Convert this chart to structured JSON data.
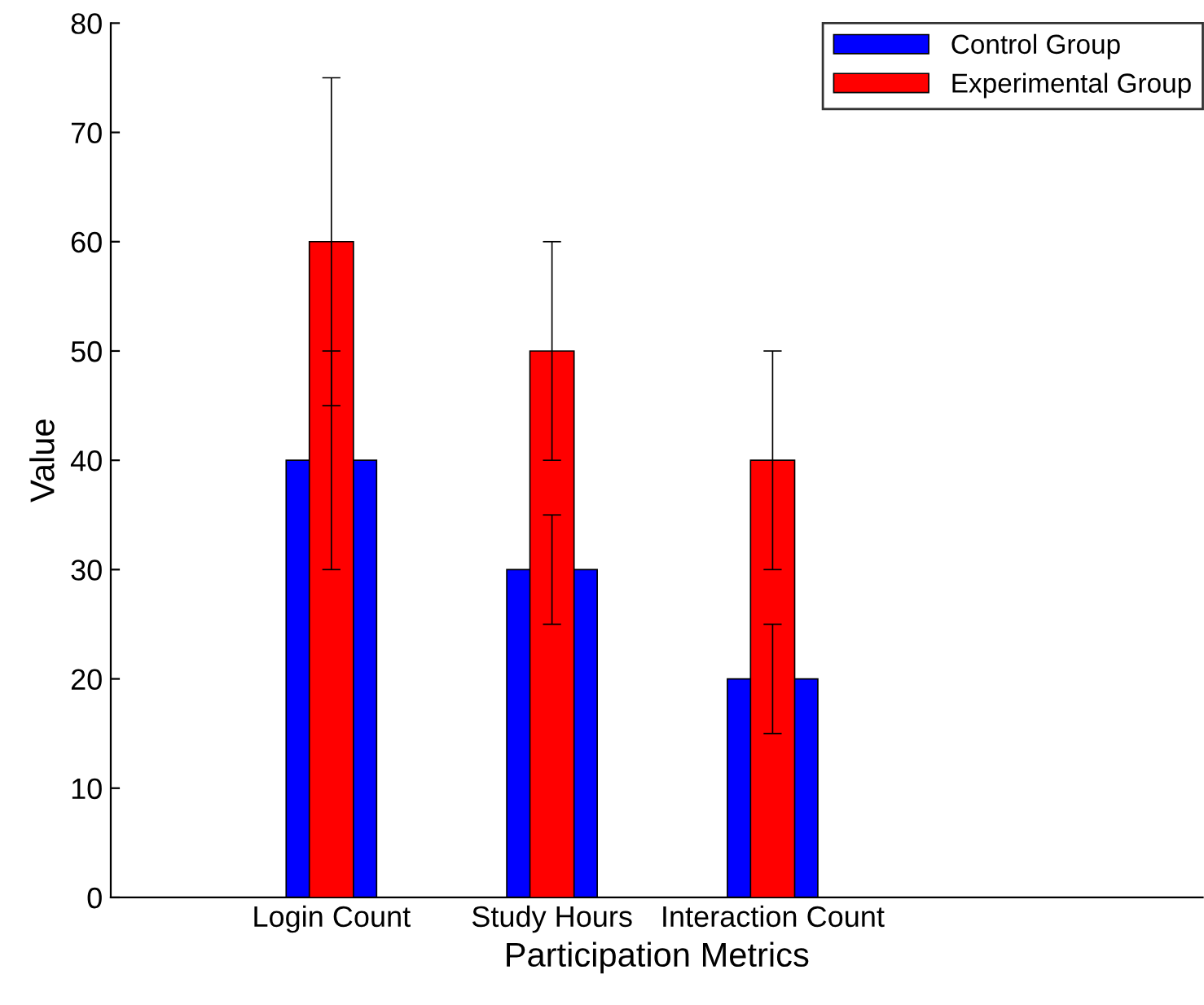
{
  "chart_data": {
    "type": "bar",
    "xlabel": "Participation Metrics",
    "ylabel": "Value",
    "categories": [
      "Login Count",
      "Study Hours",
      "Interaction Count"
    ],
    "ylim": [
      0,
      80
    ],
    "yticks": [
      0,
      10,
      20,
      30,
      40,
      50,
      60,
      70,
      80
    ],
    "grid": false,
    "legend": "top right",
    "series": [
      {
        "name": "Control Group",
        "color": "#0000ff",
        "values": [
          40,
          30,
          20
        ],
        "errors": [
          10,
          5,
          5
        ]
      },
      {
        "name": "Experimental Group",
        "color": "#ff0000",
        "values": [
          60,
          50,
          40
        ],
        "errors": [
          15,
          10,
          10
        ]
      }
    ]
  }
}
